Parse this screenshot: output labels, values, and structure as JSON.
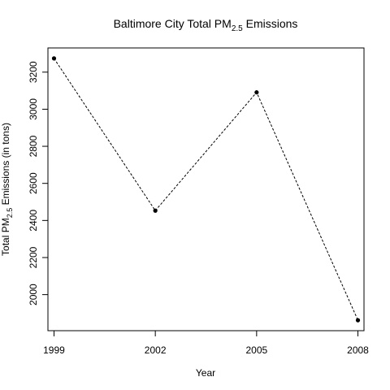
{
  "chart_data": {
    "type": "line",
    "title": {
      "prefix": "Baltimore City Total PM",
      "subscript": "2.5",
      "suffix": " Emissions"
    },
    "xlabel": "Year",
    "ylabel": {
      "prefix": "Total PM",
      "subscript": "2.5",
      "suffix": " Emissions (in tons)"
    },
    "x": [
      1999,
      2002,
      2005,
      2008
    ],
    "xticks": [
      "1999",
      "2002",
      "2005",
      "2008"
    ],
    "values": [
      3274,
      2453,
      3091,
      1862
    ],
    "yticks": [
      2000,
      2200,
      2400,
      2600,
      2800,
      3000,
      3200
    ],
    "xlim": [
      1998.82,
      2008.18
    ],
    "ylim": [
      1805.5,
      3330.5
    ],
    "grid": false,
    "colors": {
      "line": "#000000",
      "points": "#000000"
    }
  }
}
